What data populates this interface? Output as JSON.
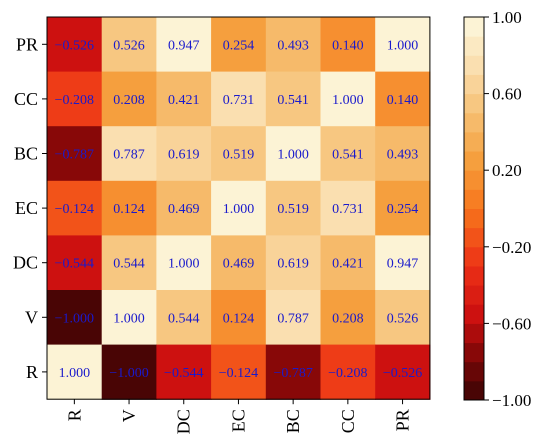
{
  "chart_data": {
    "type": "heatmap",
    "title": "",
    "xlabel": "",
    "ylabel": "",
    "x_categories": [
      "R",
      "V",
      "DC",
      "EC",
      "BC",
      "CC",
      "PR"
    ],
    "y_categories_top_to_bottom": [
      "PR",
      "CC",
      "BC",
      "EC",
      "DC",
      "V",
      "R"
    ],
    "matrix_top_to_bottom": [
      [
        -0.526,
        0.526,
        0.947,
        0.254,
        0.493,
        0.14,
        1.0
      ],
      [
        -0.208,
        0.208,
        0.421,
        0.731,
        0.541,
        1.0,
        0.14
      ],
      [
        -0.787,
        0.787,
        0.619,
        0.519,
        1.0,
        0.541,
        0.493
      ],
      [
        -0.124,
        0.124,
        0.469,
        1.0,
        0.519,
        0.731,
        0.254
      ],
      [
        -0.544,
        0.544,
        1.0,
        0.469,
        0.619,
        0.421,
        0.947
      ],
      [
        -1.0,
        1.0,
        0.544,
        0.124,
        0.787,
        0.208,
        0.526
      ],
      [
        1.0,
        -1.0,
        -0.544,
        -0.124,
        -0.787,
        -0.208,
        -0.526
      ]
    ],
    "value_label_color": "#1a1acc",
    "colorbar": {
      "min": -1.0,
      "max": 1.0,
      "ticks": [
        1.0,
        0.6,
        0.2,
        -0.2,
        -0.6,
        -1.0
      ],
      "tick_labels": [
        "1.00",
        "0.60",
        "0.20",
        "−0.20",
        "−0.60",
        "−1.00"
      ],
      "discrete_steps": 20,
      "colormap": "orange-heat"
    },
    "grid": false,
    "legend": "colorbar-right"
  }
}
